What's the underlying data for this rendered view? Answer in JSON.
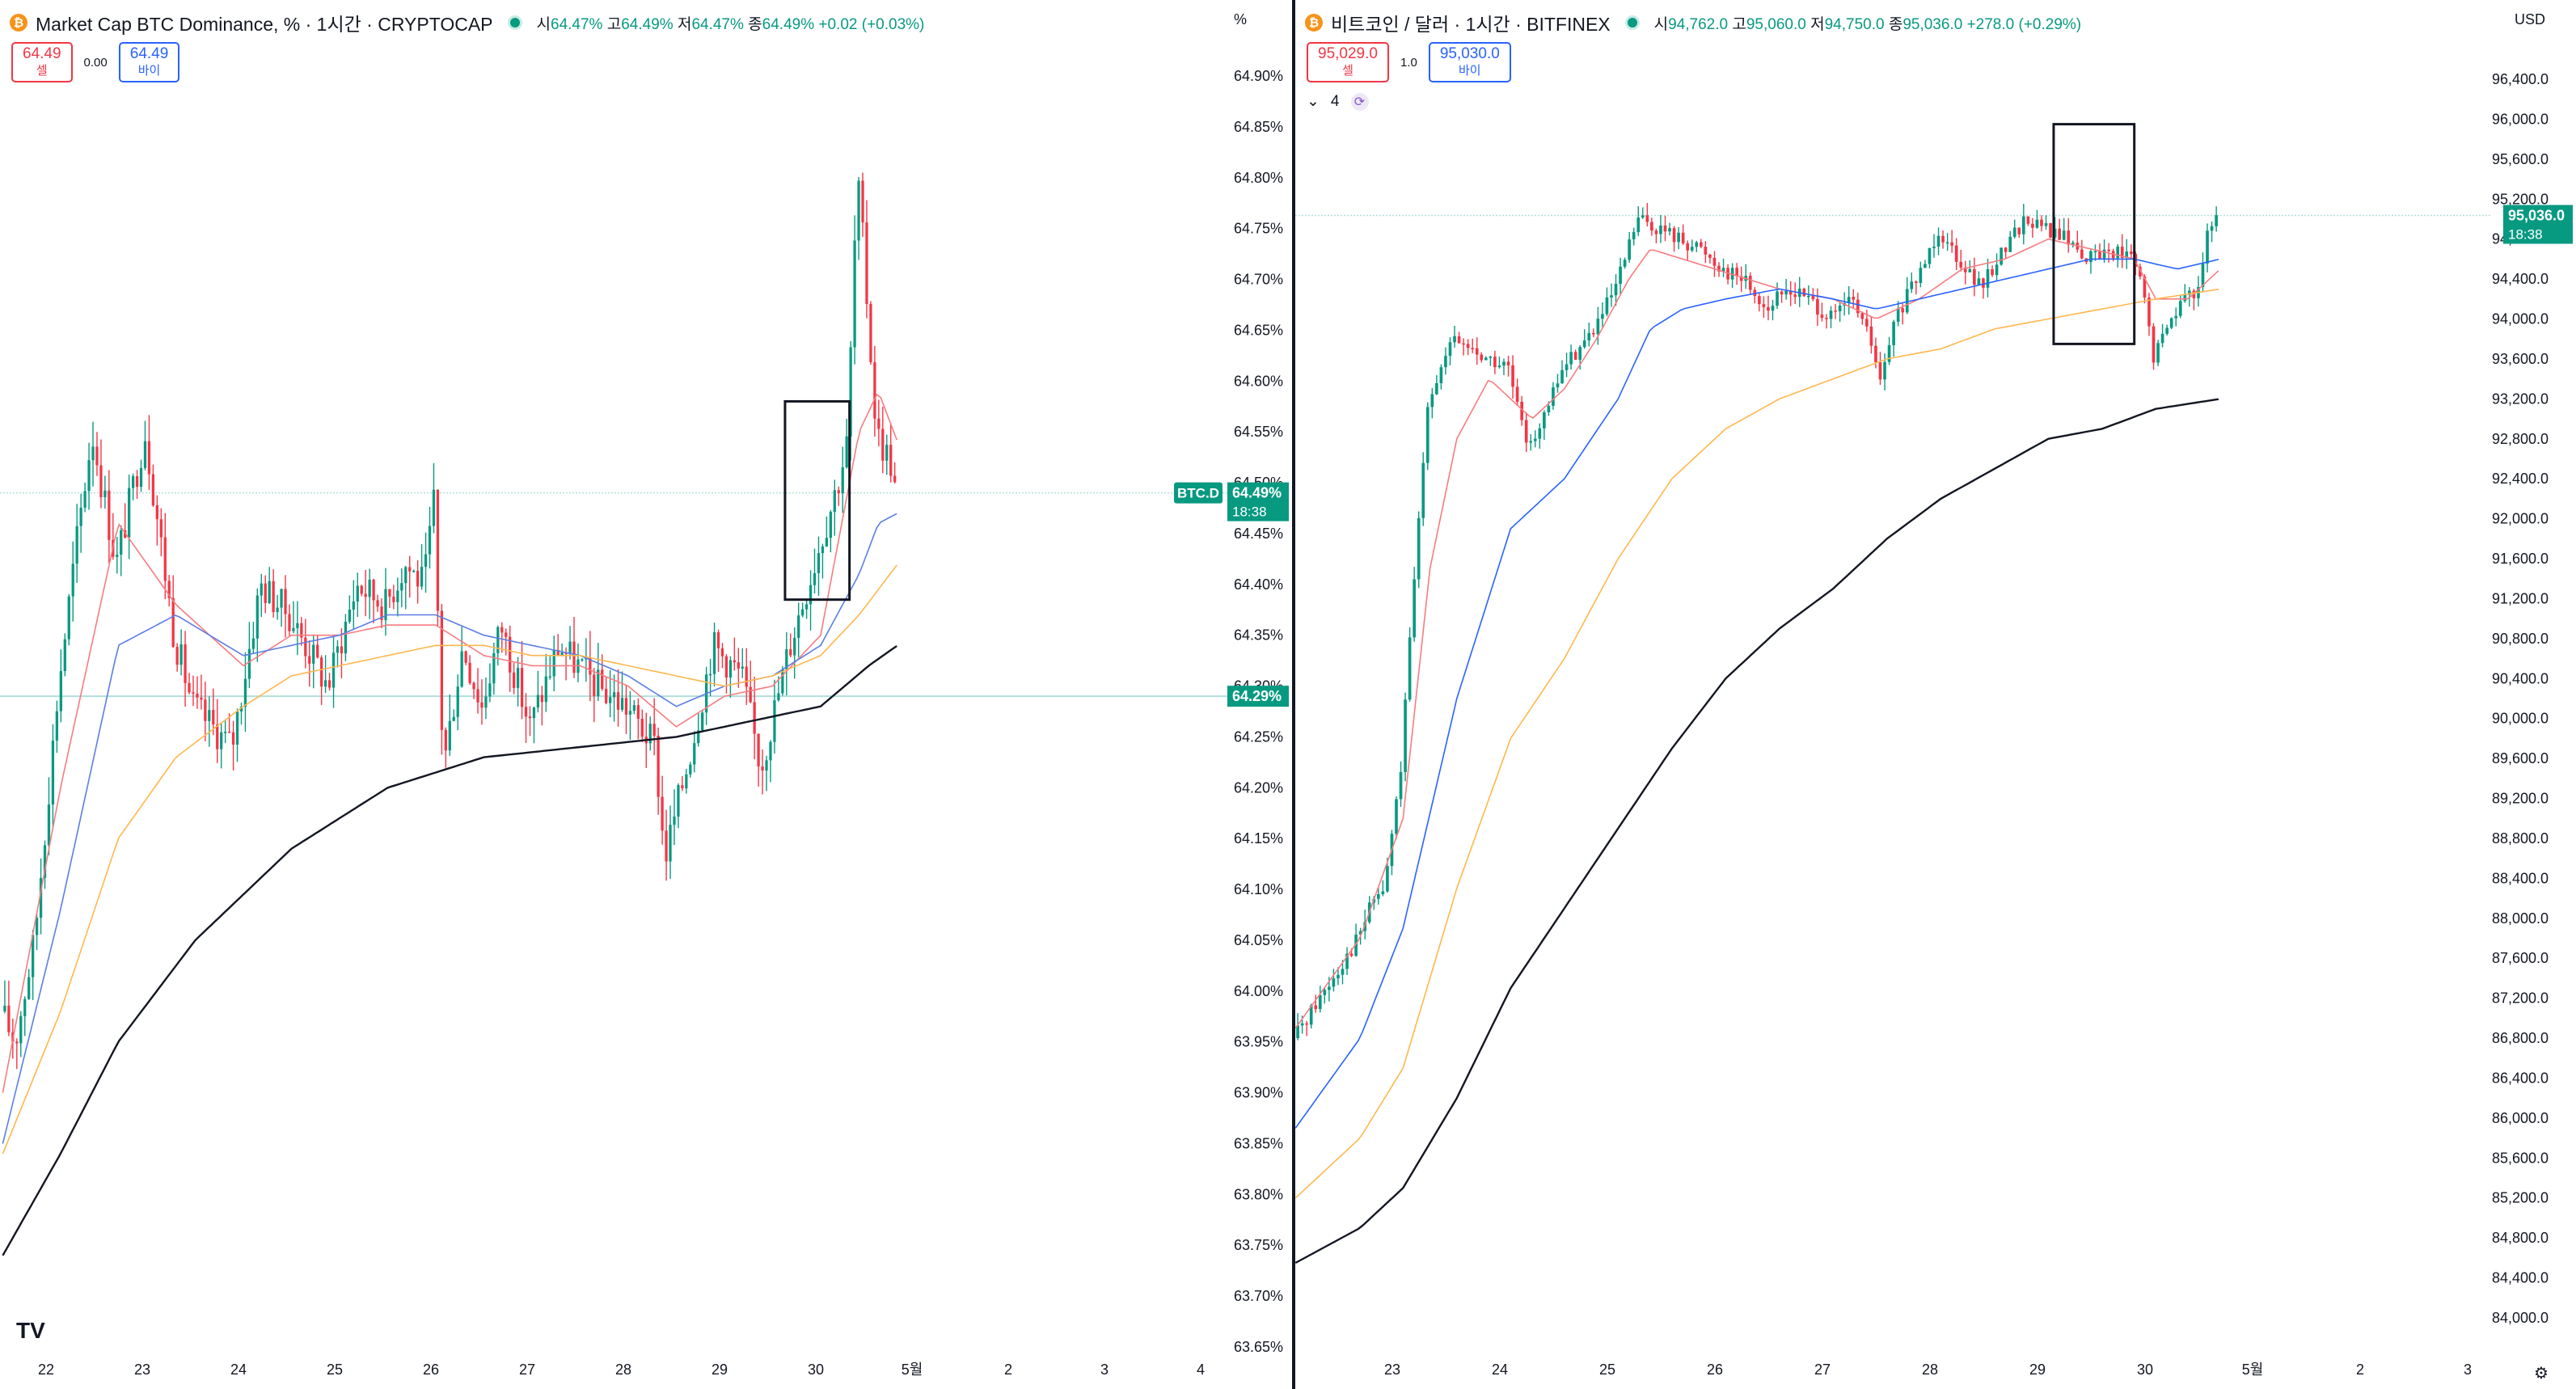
{
  "left": {
    "coin_icon": "bitcoin-icon",
    "title": "Market Cap BTC Dominance, % · 1시간 · CRYPTOCAP",
    "ohlc": {
      "o_label": "시",
      "o": "64.47%",
      "h_label": "고",
      "h": "64.49%",
      "l_label": "저",
      "l": "64.47%",
      "c_label": "종",
      "c": "64.49%",
      "change": "+0.02 (+0.03%)"
    },
    "unit": "%",
    "sell_price": "64.49",
    "sell_label": "셀",
    "buy_price": "64.49",
    "buy_label": "바이",
    "spread": "0.00",
    "symbol_tag": "BTC.D",
    "last_price": "64.49%",
    "countdown": "18:38",
    "line_price": "64.29%",
    "logo": "TV"
  },
  "right": {
    "coin_icon": "bitcoin-icon",
    "title": "비트코인 / 달러 · 1시간 · BITFINEX",
    "ohlc": {
      "o_label": "시",
      "o": "94,762.0",
      "h_label": "고",
      "h": "95,060.0",
      "l_label": "저",
      "l": "94,750.0",
      "c_label": "종",
      "c": "95,036.0",
      "change": "+278.0 (+0.29%)"
    },
    "unit": "USD",
    "sell_price": "95,029.0",
    "sell_label": "셀",
    "buy_price": "95,030.0",
    "buy_label": "바이",
    "spread": "1.0",
    "indicator_count": "4",
    "last_price": "95,036.0",
    "countdown": "18:38"
  },
  "colors": {
    "up": "#089981",
    "down": "#f23645",
    "ma_fast": "#f77c80",
    "ma_mid": "#5b7ee5",
    "ma_slow": "#ffb74d",
    "ma_long": "#131722"
  },
  "chart_data": [
    {
      "type": "candlestick",
      "title": "Market Cap BTC Dominance, % · 1시간 · CRYPTOCAP",
      "xlabel": "",
      "ylabel": "%",
      "x_ticks": [
        "22",
        "23",
        "24",
        "25",
        "26",
        "27",
        "28",
        "29",
        "30",
        "5월",
        "2",
        "3",
        "4"
      ],
      "y_ticks": [
        "64.90%",
        "64.85%",
        "64.80%",
        "64.75%",
        "64.70%",
        "64.65%",
        "64.60%",
        "64.55%",
        "64.50%",
        "64.45%",
        "64.40%",
        "64.35%",
        "64.30%",
        "64.25%",
        "64.20%",
        "64.15%",
        "64.10%",
        "64.05%",
        "64.00%",
        "63.95%",
        "63.90%",
        "63.85%",
        "63.80%",
        "63.75%",
        "63.70%",
        "63.65%"
      ],
      "ylim": [
        63.635,
        64.94
      ],
      "last_value": 64.49,
      "horizontal_line": 64.29,
      "anchors": [
        [
          0,
          63.98
        ],
        [
          0.15,
          63.95
        ],
        [
          0.35,
          64.05
        ],
        [
          0.6,
          64.3
        ],
        [
          0.8,
          64.45
        ],
        [
          0.95,
          64.55
        ],
        [
          1.2,
          64.42
        ],
        [
          1.5,
          64.55
        ],
        [
          1.8,
          64.35
        ],
        [
          2.0,
          64.28
        ],
        [
          2.4,
          64.24
        ],
        [
          2.7,
          64.4
        ],
        [
          3.0,
          64.37
        ],
        [
          3.4,
          64.3
        ],
        [
          3.7,
          64.4
        ],
        [
          4.0,
          64.38
        ],
        [
          4.2,
          64.42
        ],
        [
          4.4,
          64.4
        ],
        [
          4.5,
          64.48
        ],
        [
          4.6,
          64.22
        ],
        [
          4.8,
          64.34
        ],
        [
          5.0,
          64.28
        ],
        [
          5.2,
          64.36
        ],
        [
          5.5,
          64.26
        ],
        [
          5.8,
          64.34
        ],
        [
          6.2,
          64.3
        ],
        [
          6.5,
          64.28
        ],
        [
          6.8,
          64.24
        ],
        [
          6.9,
          64.13
        ],
        [
          7.2,
          64.25
        ],
        [
          7.4,
          64.34
        ],
        [
          7.7,
          64.31
        ],
        [
          7.9,
          64.22
        ],
        [
          8.2,
          64.34
        ],
        [
          8.45,
          64.42
        ],
        [
          8.7,
          64.5
        ],
        [
          8.8,
          64.54
        ],
        [
          8.9,
          64.8
        ],
        [
          8.95,
          64.75
        ],
        [
          9.1,
          64.55
        ],
        [
          9.25,
          64.52
        ],
        [
          9.3,
          64.49
        ]
      ],
      "moving_averages": [
        {
          "color": "#f77c80",
          "anchors": [
            [
              0,
              63.9
            ],
            [
              0.6,
              64.2
            ],
            [
              1.2,
              64.46
            ],
            [
              1.8,
              64.38
            ],
            [
              2.5,
              64.32
            ],
            [
              3.0,
              64.35
            ],
            [
              3.5,
              64.35
            ],
            [
              4.0,
              64.36
            ],
            [
              4.5,
              64.36
            ],
            [
              5.0,
              64.33
            ],
            [
              5.5,
              64.32
            ],
            [
              6.0,
              64.32
            ],
            [
              6.5,
              64.3
            ],
            [
              7.0,
              64.26
            ],
            [
              7.5,
              64.29
            ],
            [
              8.0,
              64.3
            ],
            [
              8.5,
              64.35
            ],
            [
              8.9,
              64.55
            ],
            [
              9.1,
              64.59
            ],
            [
              9.3,
              64.54
            ]
          ]
        },
        {
          "color": "#5b7ee5",
          "anchors": [
            [
              0,
              63.85
            ],
            [
              0.6,
              64.08
            ],
            [
              1.2,
              64.34
            ],
            [
              1.8,
              64.37
            ],
            [
              2.5,
              64.33
            ],
            [
              3.0,
              64.34
            ],
            [
              3.5,
              64.35
            ],
            [
              4.0,
              64.37
            ],
            [
              4.5,
              64.37
            ],
            [
              5.0,
              64.35
            ],
            [
              5.5,
              64.34
            ],
            [
              6.0,
              64.33
            ],
            [
              6.5,
              64.31
            ],
            [
              7.0,
              64.28
            ],
            [
              7.5,
              64.3
            ],
            [
              8.0,
              64.31
            ],
            [
              8.5,
              64.34
            ],
            [
              8.9,
              64.41
            ],
            [
              9.1,
              64.46
            ],
            [
              9.3,
              64.47
            ]
          ]
        },
        {
          "color": "#ffb74d",
          "anchors": [
            [
              0,
              63.84
            ],
            [
              0.6,
              63.98
            ],
            [
              1.2,
              64.15
            ],
            [
              1.8,
              64.23
            ],
            [
              2.5,
              64.28
            ],
            [
              3.0,
              64.31
            ],
            [
              3.5,
              64.32
            ],
            [
              4.0,
              64.33
            ],
            [
              4.5,
              64.34
            ],
            [
              5.0,
              64.34
            ],
            [
              5.5,
              64.33
            ],
            [
              6.0,
              64.33
            ],
            [
              6.5,
              64.32
            ],
            [
              7.0,
              64.31
            ],
            [
              7.5,
              64.3
            ],
            [
              8.0,
              64.31
            ],
            [
              8.5,
              64.33
            ],
            [
              8.9,
              64.37
            ],
            [
              9.3,
              64.42
            ]
          ]
        },
        {
          "color": "#131722",
          "anchors": [
            [
              0,
              63.74
            ],
            [
              0.6,
              63.84
            ],
            [
              1.2,
              63.95
            ],
            [
              2.0,
              64.05
            ],
            [
              3.0,
              64.14
            ],
            [
              4.0,
              64.2
            ],
            [
              5.0,
              64.23
            ],
            [
              6.0,
              64.24
            ],
            [
              7.0,
              64.25
            ],
            [
              8.0,
              64.27
            ],
            [
              8.5,
              64.28
            ],
            [
              9.0,
              64.32
            ],
            [
              9.3,
              64.34
            ]
          ]
        }
      ],
      "annotation_box": {
        "x0": 8.13,
        "x1": 8.8,
        "y0": 64.385,
        "y1": 64.58
      }
    },
    {
      "type": "candlestick",
      "title": "비트코인 / 달러 · 1시간 · BITFINEX",
      "xlabel": "",
      "ylabel": "USD",
      "x_ticks": [
        "23",
        "24",
        "25",
        "26",
        "27",
        "28",
        "29",
        "30",
        "5월",
        "2",
        "3"
      ],
      "y_ticks": [
        "96,400.0",
        "96,000.0",
        "95,600.0",
        "95,200.0",
        "94,800.0",
        "94,400.0",
        "94,000.0",
        "93,600.0",
        "93,200.0",
        "92,800.0",
        "92,400.0",
        "92,000.0",
        "91,600.0",
        "91,200.0",
        "90,800.0",
        "90,400.0",
        "90,000.0",
        "89,600.0",
        "89,200.0",
        "88,800.0",
        "88,400.0",
        "88,000.0",
        "87,600.0",
        "87,200.0",
        "86,800.0",
        "86,400.0",
        "86,000.0",
        "85,600.0",
        "85,200.0",
        "84,800.0",
        "84,400.0",
        "84,000.0"
      ],
      "ylim": [
        83,
        825,
        96,
        800
      ],
      "last_value": 95036,
      "anchors": [
        [
          0,
          86800
        ],
        [
          0.3,
          87300
        ],
        [
          0.6,
          87800
        ],
        [
          0.75,
          88200
        ],
        [
          0.85,
          88300
        ],
        [
          1.0,
          89500
        ],
        [
          1.1,
          91000
        ],
        [
          1.25,
          93200
        ],
        [
          1.5,
          93800
        ],
        [
          1.8,
          93600
        ],
        [
          2.0,
          93500
        ],
        [
          2.15,
          92800
        ],
        [
          2.3,
          92900
        ],
        [
          2.5,
          93500
        ],
        [
          2.8,
          93900
        ],
        [
          3.0,
          94300
        ],
        [
          3.2,
          95000
        ],
        [
          3.4,
          94900
        ],
        [
          3.6,
          94800
        ],
        [
          3.8,
          94700
        ],
        [
          4.0,
          94500
        ],
        [
          4.2,
          94400
        ],
        [
          4.4,
          94100
        ],
        [
          4.6,
          94300
        ],
        [
          4.8,
          94200
        ],
        [
          5.0,
          94000
        ],
        [
          5.2,
          94200
        ],
        [
          5.4,
          93700
        ],
        [
          5.45,
          93300
        ],
        [
          5.6,
          94000
        ],
        [
          5.8,
          94400
        ],
        [
          6.0,
          94900
        ],
        [
          6.2,
          94600
        ],
        [
          6.4,
          94300
        ],
        [
          6.6,
          94700
        ],
        [
          6.8,
          95000
        ],
        [
          7.0,
          94900
        ],
        [
          7.2,
          94800
        ],
        [
          7.4,
          94600
        ],
        [
          7.6,
          94700
        ],
        [
          7.8,
          94600
        ],
        [
          7.9,
          94300
        ],
        [
          8.0,
          93600
        ],
        [
          8.2,
          94100
        ],
        [
          8.4,
          94300
        ],
        [
          8.5,
          94800
        ],
        [
          8.6,
          95036
        ]
      ],
      "moving_averages": [
        {
          "color": "#f77c80",
          "anchors": [
            [
              0,
              86900
            ],
            [
              0.6,
              87800
            ],
            [
              1.0,
              89000
            ],
            [
              1.25,
              91500
            ],
            [
              1.5,
              92800
            ],
            [
              1.8,
              93400
            ],
            [
              2.2,
              93000
            ],
            [
              2.5,
              93300
            ],
            [
              2.8,
              93800
            ],
            [
              3.1,
              94400
            ],
            [
              3.3,
              94700
            ],
            [
              3.6,
              94600
            ],
            [
              3.9,
              94500
            ],
            [
              4.2,
              94400
            ],
            [
              4.5,
              94300
            ],
            [
              5.0,
              94200
            ],
            [
              5.4,
              94000
            ],
            [
              5.8,
              94200
            ],
            [
              6.2,
              94500
            ],
            [
              6.6,
              94600
            ],
            [
              7.0,
              94800
            ],
            [
              7.4,
              94700
            ],
            [
              7.8,
              94600
            ],
            [
              8.0,
              94200
            ],
            [
              8.3,
              94200
            ],
            [
              8.6,
              94500
            ]
          ]
        },
        {
          "color": "#2962ff",
          "anchors": [
            [
              0,
              85900
            ],
            [
              0.6,
              86800
            ],
            [
              1.0,
              87900
            ],
            [
              1.5,
              90200
            ],
            [
              2.0,
              91900
            ],
            [
              2.5,
              92400
            ],
            [
              3.0,
              93200
            ],
            [
              3.3,
              93900
            ],
            [
              3.6,
              94100
            ],
            [
              4.0,
              94200
            ],
            [
              4.5,
              94300
            ],
            [
              5.0,
              94200
            ],
            [
              5.4,
              94100
            ],
            [
              5.8,
              94200
            ],
            [
              6.2,
              94300
            ],
            [
              6.6,
              94400
            ],
            [
              7.0,
              94500
            ],
            [
              7.4,
              94600
            ],
            [
              7.8,
              94600
            ],
            [
              8.2,
              94500
            ],
            [
              8.6,
              94600
            ]
          ]
        },
        {
          "color": "#ffb74d",
          "anchors": [
            [
              0,
              85200
            ],
            [
              0.6,
              85800
            ],
            [
              1.0,
              86500
            ],
            [
              1.5,
              88300
            ],
            [
              2.0,
              89800
            ],
            [
              2.5,
              90600
            ],
            [
              3.0,
              91600
            ],
            [
              3.5,
              92400
            ],
            [
              4.0,
              92900
            ],
            [
              4.5,
              93200
            ],
            [
              5.0,
              93400
            ],
            [
              5.5,
              93600
            ],
            [
              6.0,
              93700
            ],
            [
              6.5,
              93900
            ],
            [
              7.0,
              94000
            ],
            [
              7.5,
              94100
            ],
            [
              8.0,
              94200
            ],
            [
              8.6,
              94300
            ]
          ]
        },
        {
          "color": "#131722",
          "anchors": [
            [
              0,
              84550
            ],
            [
              0.6,
              84900
            ],
            [
              1.0,
              85300
            ],
            [
              1.5,
              86200
            ],
            [
              2.0,
              87300
            ],
            [
              2.5,
              88100
            ],
            [
              3.0,
              88900
            ],
            [
              3.5,
              89700
            ],
            [
              4.0,
              90400
            ],
            [
              4.5,
              90900
            ],
            [
              5.0,
              91300
            ],
            [
              5.5,
              91800
            ],
            [
              6.0,
              92200
            ],
            [
              6.5,
              92500
            ],
            [
              7.0,
              92800
            ],
            [
              7.5,
              92900
            ],
            [
              8.0,
              93100
            ],
            [
              8.6,
              93200
            ]
          ]
        }
      ],
      "annotation_box": {
        "x0": 7.05,
        "x1": 7.8,
        "y0": 93750,
        "y1": 95950
      }
    }
  ]
}
